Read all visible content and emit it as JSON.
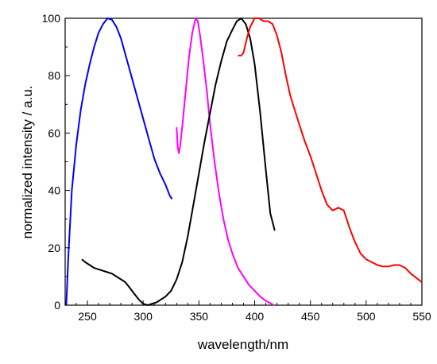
{
  "chart_data": {
    "type": "line",
    "xlabel": "wavelength/nm",
    "ylabel": "normalized intensity / a.u.",
    "xlim": [
      230,
      550
    ],
    "ylim": [
      0,
      100
    ],
    "xticks": [
      250,
      300,
      350,
      400,
      450,
      500,
      550
    ],
    "yticks": [
      0,
      20,
      40,
      60,
      80,
      100
    ],
    "grid": false,
    "legend": "none",
    "series": [
      {
        "color": "#0000ff",
        "x": [
          231,
          233,
          236,
          240,
          244,
          248,
          252,
          256,
          260,
          264,
          268,
          272,
          276,
          280,
          285,
          290,
          295,
          300,
          305,
          310,
          315,
          320,
          324,
          326
        ],
        "y": [
          0,
          18,
          40,
          56,
          68,
          77,
          84,
          90,
          95,
          98,
          100,
          99.5,
          97,
          93,
          86,
          79,
          72,
          65,
          58,
          51,
          46,
          42,
          38,
          37
        ]
      },
      {
        "color": "#ff00ff",
        "x": [
          330,
          331,
          332,
          333,
          335,
          338,
          341,
          344,
          347,
          349,
          351,
          354,
          357,
          360,
          364,
          368,
          372,
          376,
          380,
          385,
          390,
          395,
          400,
          405,
          410,
          415,
          417
        ],
        "y": [
          62,
          55,
          53,
          55,
          62,
          74,
          86,
          95,
          100,
          99,
          94,
          85,
          75,
          63,
          50,
          39,
          30,
          23,
          18,
          13,
          10,
          7,
          5,
          3,
          1.5,
          0.5,
          0
        ]
      },
      {
        "color": "#000000",
        "x": [
          245,
          248,
          252,
          256,
          260,
          264,
          268,
          272,
          276,
          280,
          284,
          288,
          292,
          296,
          300,
          304,
          308,
          312,
          316,
          320,
          325,
          330,
          335,
          340,
          345,
          350,
          355,
          360,
          365,
          370,
          375,
          380,
          384,
          388,
          392,
          396,
          400,
          405,
          410,
          414,
          418
        ],
        "y": [
          16,
          15,
          14,
          13,
          12.5,
          12,
          11.5,
          11,
          10,
          9,
          8,
          6,
          4,
          2,
          0.5,
          0,
          0.5,
          1,
          2,
          3,
          5,
          9,
          15,
          24,
          35,
          46,
          57,
          67,
          77,
          85,
          92,
          96,
          99,
          100,
          98,
          93,
          84,
          67,
          47,
          32,
          26
        ]
      },
      {
        "color": "#ff0000",
        "x": [
          385,
          388,
          390,
          393,
          396,
          400,
          404,
          408,
          412,
          416,
          420,
          424,
          428,
          432,
          436,
          440,
          445,
          450,
          455,
          460,
          465,
          470,
          475,
          480,
          485,
          490,
          495,
          500,
          505,
          510,
          515,
          520,
          525,
          530,
          535,
          540,
          545,
          550
        ],
        "y": [
          87,
          87,
          88,
          93,
          97,
          100,
          100,
          99,
          99,
          98,
          94,
          88,
          80,
          73,
          68,
          63,
          57,
          52,
          46,
          40,
          35,
          33,
          34,
          33,
          27,
          22,
          18,
          16,
          15,
          14,
          13.5,
          13.5,
          14,
          14,
          13,
          11,
          9.5,
          8
        ]
      }
    ]
  }
}
